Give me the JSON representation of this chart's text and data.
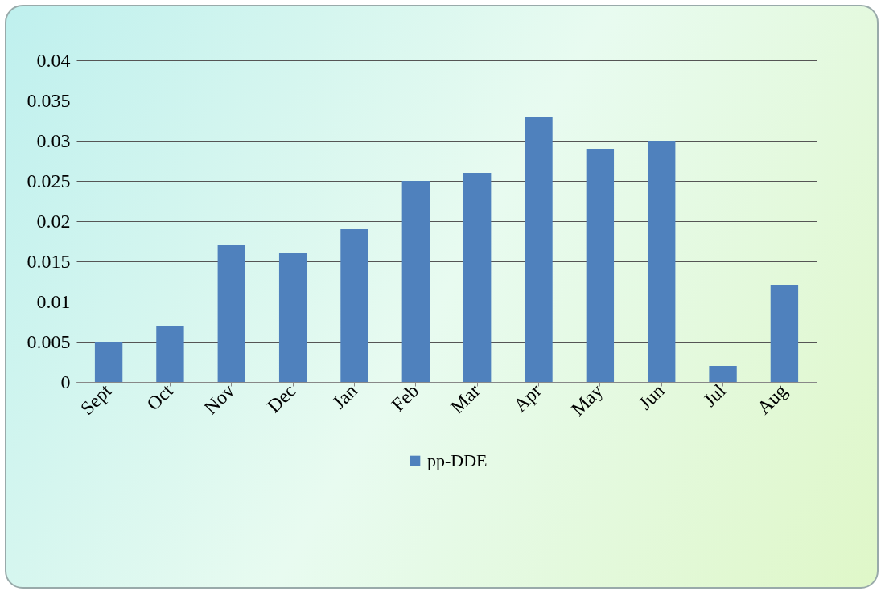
{
  "chart_data": {
    "type": "bar",
    "categories": [
      "Sept",
      "Oct",
      "Nov",
      "Dec",
      "Jan",
      "Feb",
      "Mar",
      "Apr",
      "May",
      "Jun",
      "Jul",
      "Aug"
    ],
    "series": [
      {
        "name": "pp-DDE",
        "color": "#4f81bd",
        "values": [
          0.005,
          0.007,
          0.017,
          0.016,
          0.019,
          0.025,
          0.026,
          0.033,
          0.029,
          0.03,
          0.002,
          0.012
        ]
      }
    ],
    "ylim": [
      0,
      0.04
    ],
    "yticks": [
      0,
      0.005,
      0.01,
      0.015,
      0.02,
      0.025,
      0.03,
      0.035,
      0.04
    ],
    "grid": "y",
    "legend": "bottom"
  }
}
